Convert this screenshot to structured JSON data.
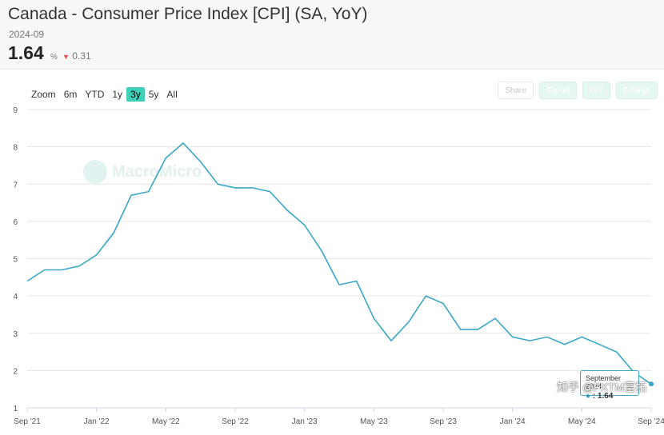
{
  "header": {
    "title": "Canada - Consumer Price Index [CPI] (SA, YoY)",
    "date": "2024-09",
    "value": "1.64",
    "unit": "%",
    "change": "0.31"
  },
  "range_selector": {
    "label": "Zoom",
    "options": [
      "6m",
      "YTD",
      "1y",
      "3y",
      "5y",
      "All"
    ],
    "selected": "3y"
  },
  "toolbar": [
    "Share",
    "Export",
    "DIY",
    "Enlarge"
  ],
  "watermark": "MacroMicro",
  "tooltip": {
    "date": "September 2024",
    "value": ": 1.64"
  },
  "corner_text": "知乎 @FXTM富拓",
  "colors": {
    "line": "#3aa6c7",
    "accent": "#3fd0b8"
  },
  "chart_data": {
    "type": "line",
    "title": "Canada - Consumer Price Index [CPI] (SA, YoY)",
    "ylim": [
      1,
      9
    ],
    "yticks": [
      1,
      2,
      3,
      4,
      5,
      6,
      7,
      8,
      9
    ],
    "xticks": [
      "Sep '21",
      "Jan '22",
      "May '22",
      "Sep '22",
      "Jan '23",
      "May '23",
      "Sep '23",
      "Jan '24",
      "May '24",
      "Sep '24"
    ],
    "grid": true,
    "series": [
      {
        "name": "",
        "x": [
          "2021-09",
          "2021-10",
          "2021-11",
          "2021-12",
          "2022-01",
          "2022-02",
          "2022-03",
          "2022-04",
          "2022-05",
          "2022-06",
          "2022-07",
          "2022-08",
          "2022-09",
          "2022-10",
          "2022-11",
          "2022-12",
          "2023-01",
          "2023-02",
          "2023-03",
          "2023-04",
          "2023-05",
          "2023-06",
          "2023-07",
          "2023-08",
          "2023-09",
          "2023-10",
          "2023-11",
          "2023-12",
          "2024-01",
          "2024-02",
          "2024-03",
          "2024-04",
          "2024-05",
          "2024-06",
          "2024-07",
          "2024-08",
          "2024-09"
        ],
        "values": [
          4.4,
          4.7,
          4.7,
          4.8,
          5.1,
          5.7,
          6.7,
          6.8,
          7.7,
          8.1,
          7.6,
          7.0,
          6.9,
          6.9,
          6.8,
          6.3,
          5.9,
          5.2,
          4.3,
          4.4,
          3.4,
          2.8,
          3.3,
          4.0,
          3.8,
          3.1,
          3.1,
          3.4,
          2.9,
          2.8,
          2.9,
          2.7,
          2.9,
          2.7,
          2.5,
          1.95,
          1.64
        ]
      }
    ]
  }
}
